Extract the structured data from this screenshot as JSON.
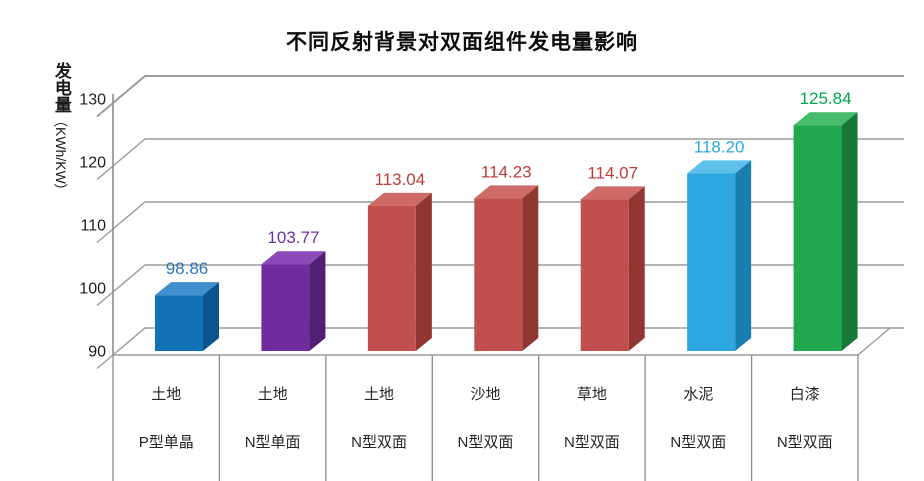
{
  "chart_data": {
    "type": "bar",
    "style": "3d-bar",
    "title": "不同反射背景对双面组件发电量影响",
    "ylabel": "发电量",
    "ylabel_unit": "（KWh/KW）",
    "ylim": [
      90,
      130
    ],
    "yticks": [
      90,
      100,
      110,
      120,
      130
    ],
    "grid": true,
    "legend": "none",
    "categories": [
      {
        "surface": "土地",
        "module": "P型单晶"
      },
      {
        "surface": "土地",
        "module": "N型单面"
      },
      {
        "surface": "土地",
        "module": "N型双面"
      },
      {
        "surface": "沙地",
        "module": "N型双面"
      },
      {
        "surface": "草地",
        "module": "N型双面"
      },
      {
        "surface": "水泥",
        "module": "N型双面"
      },
      {
        "surface": "白漆",
        "module": "N型双面"
      }
    ],
    "values": [
      98.86,
      103.77,
      113.04,
      114.23,
      114.07,
      118.2,
      125.84
    ],
    "value_labels": [
      "98.86",
      "103.77",
      "113.04",
      "114.23",
      "114.07",
      "118.20",
      "125.84"
    ],
    "bar_colors": [
      {
        "front": "#1371B5",
        "top": "#3F8FCC",
        "side": "#0C548E",
        "label": "#2E75B6"
      },
      {
        "front": "#6E2C9E",
        "top": "#8A4BB8",
        "side": "#511F76",
        "label": "#7030A0"
      },
      {
        "front": "#C0504D",
        "top": "#CE6A67",
        "side": "#923634",
        "label": "#BE3D39"
      },
      {
        "front": "#C0504D",
        "top": "#CE6A67",
        "side": "#923634",
        "label": "#BE3D39"
      },
      {
        "front": "#C0504D",
        "top": "#CE6A67",
        "side": "#923634",
        "label": "#BE3D39"
      },
      {
        "front": "#2BA6DF",
        "top": "#5FC0EA",
        "side": "#1A7FB0",
        "label": "#29ABE2"
      },
      {
        "front": "#21A84E",
        "top": "#46BC6C",
        "side": "#167839",
        "label": "#00A551"
      }
    ],
    "axis_color": "#8C8C8C",
    "gridline_color": "#9C9C9C",
    "tick_label_color": "#1f1f1f",
    "category_label_color": "#262626"
  }
}
